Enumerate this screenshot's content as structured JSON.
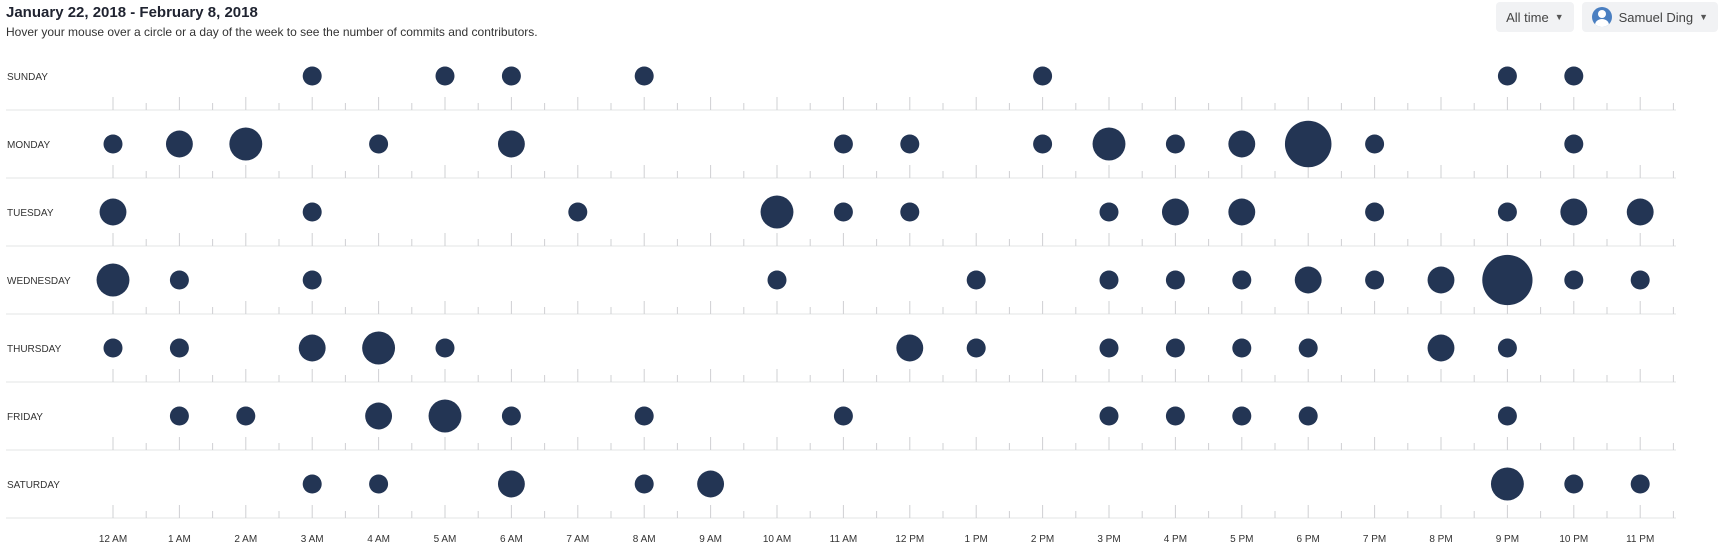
{
  "header": {
    "title": "January 22, 2018 - February 8, 2018",
    "subtitle": "Hover your mouse over a circle or a day of the week to see the number of commits and contributors."
  },
  "controls": {
    "range_label": "All time",
    "user_label": "Samuel Ding"
  },
  "colors": {
    "dot": "#233554",
    "grid": "#e3e4e6",
    "tick": "#cfd0d3"
  },
  "chart_data": {
    "type": "scatter",
    "days": [
      "SUNDAY",
      "MONDAY",
      "TUESDAY",
      "WEDNESDAY",
      "THURSDAY",
      "FRIDAY",
      "SATURDAY"
    ],
    "hours": [
      "12 AM",
      "1 AM",
      "2 AM",
      "3 AM",
      "4 AM",
      "5 AM",
      "6 AM",
      "7 AM",
      "8 AM",
      "9 AM",
      "10 AM",
      "11 AM",
      "12 PM",
      "1 PM",
      "2 PM",
      "3 PM",
      "4 PM",
      "5 PM",
      "6 PM",
      "7 PM",
      "8 PM",
      "9 PM",
      "10 PM",
      "11 PM"
    ],
    "points": [
      {
        "day": "SUNDAY",
        "hour": "3 AM",
        "value": 1
      },
      {
        "day": "SUNDAY",
        "hour": "5 AM",
        "value": 1
      },
      {
        "day": "SUNDAY",
        "hour": "6 AM",
        "value": 1
      },
      {
        "day": "SUNDAY",
        "hour": "8 AM",
        "value": 1
      },
      {
        "day": "SUNDAY",
        "hour": "2 PM",
        "value": 1
      },
      {
        "day": "SUNDAY",
        "hour": "9 PM",
        "value": 1
      },
      {
        "day": "SUNDAY",
        "hour": "10 PM",
        "value": 1
      },
      {
        "day": "MONDAY",
        "hour": "12 AM",
        "value": 1
      },
      {
        "day": "MONDAY",
        "hour": "1 AM",
        "value": 2
      },
      {
        "day": "MONDAY",
        "hour": "2 AM",
        "value": 3
      },
      {
        "day": "MONDAY",
        "hour": "4 AM",
        "value": 1
      },
      {
        "day": "MONDAY",
        "hour": "6 AM",
        "value": 2
      },
      {
        "day": "MONDAY",
        "hour": "11 AM",
        "value": 1
      },
      {
        "day": "MONDAY",
        "hour": "12 PM",
        "value": 1
      },
      {
        "day": "MONDAY",
        "hour": "2 PM",
        "value": 1
      },
      {
        "day": "MONDAY",
        "hour": "3 PM",
        "value": 3
      },
      {
        "day": "MONDAY",
        "hour": "4 PM",
        "value": 1
      },
      {
        "day": "MONDAY",
        "hour": "5 PM",
        "value": 2
      },
      {
        "day": "MONDAY",
        "hour": "6 PM",
        "value": 6
      },
      {
        "day": "MONDAY",
        "hour": "7 PM",
        "value": 1
      },
      {
        "day": "MONDAY",
        "hour": "10 PM",
        "value": 1
      },
      {
        "day": "TUESDAY",
        "hour": "12 AM",
        "value": 2
      },
      {
        "day": "TUESDAY",
        "hour": "3 AM",
        "value": 1
      },
      {
        "day": "TUESDAY",
        "hour": "7 AM",
        "value": 1
      },
      {
        "day": "TUESDAY",
        "hour": "10 AM",
        "value": 3
      },
      {
        "day": "TUESDAY",
        "hour": "11 AM",
        "value": 1
      },
      {
        "day": "TUESDAY",
        "hour": "12 PM",
        "value": 1
      },
      {
        "day": "TUESDAY",
        "hour": "3 PM",
        "value": 1
      },
      {
        "day": "TUESDAY",
        "hour": "4 PM",
        "value": 2
      },
      {
        "day": "TUESDAY",
        "hour": "5 PM",
        "value": 2
      },
      {
        "day": "TUESDAY",
        "hour": "7 PM",
        "value": 1
      },
      {
        "day": "TUESDAY",
        "hour": "9 PM",
        "value": 1
      },
      {
        "day": "TUESDAY",
        "hour": "10 PM",
        "value": 2
      },
      {
        "day": "TUESDAY",
        "hour": "11 PM",
        "value": 2
      },
      {
        "day": "WEDNESDAY",
        "hour": "12 AM",
        "value": 3
      },
      {
        "day": "WEDNESDAY",
        "hour": "1 AM",
        "value": 1
      },
      {
        "day": "WEDNESDAY",
        "hour": "3 AM",
        "value": 1
      },
      {
        "day": "WEDNESDAY",
        "hour": "10 AM",
        "value": 1
      },
      {
        "day": "WEDNESDAY",
        "hour": "1 PM",
        "value": 1
      },
      {
        "day": "WEDNESDAY",
        "hour": "3 PM",
        "value": 1
      },
      {
        "day": "WEDNESDAY",
        "hour": "4 PM",
        "value": 1
      },
      {
        "day": "WEDNESDAY",
        "hour": "5 PM",
        "value": 1
      },
      {
        "day": "WEDNESDAY",
        "hour": "6 PM",
        "value": 2
      },
      {
        "day": "WEDNESDAY",
        "hour": "7 PM",
        "value": 1
      },
      {
        "day": "WEDNESDAY",
        "hour": "8 PM",
        "value": 2
      },
      {
        "day": "WEDNESDAY",
        "hour": "9 PM",
        "value": 7
      },
      {
        "day": "WEDNESDAY",
        "hour": "10 PM",
        "value": 1
      },
      {
        "day": "WEDNESDAY",
        "hour": "11 PM",
        "value": 1
      },
      {
        "day": "THURSDAY",
        "hour": "12 AM",
        "value": 1
      },
      {
        "day": "THURSDAY",
        "hour": "1 AM",
        "value": 1
      },
      {
        "day": "THURSDAY",
        "hour": "3 AM",
        "value": 2
      },
      {
        "day": "THURSDAY",
        "hour": "4 AM",
        "value": 3
      },
      {
        "day": "THURSDAY",
        "hour": "5 AM",
        "value": 1
      },
      {
        "day": "THURSDAY",
        "hour": "12 PM",
        "value": 2
      },
      {
        "day": "THURSDAY",
        "hour": "1 PM",
        "value": 1
      },
      {
        "day": "THURSDAY",
        "hour": "3 PM",
        "value": 1
      },
      {
        "day": "THURSDAY",
        "hour": "4 PM",
        "value": 1
      },
      {
        "day": "THURSDAY",
        "hour": "5 PM",
        "value": 1
      },
      {
        "day": "THURSDAY",
        "hour": "6 PM",
        "value": 1
      },
      {
        "day": "THURSDAY",
        "hour": "8 PM",
        "value": 2
      },
      {
        "day": "THURSDAY",
        "hour": "9 PM",
        "value": 1
      },
      {
        "day": "FRIDAY",
        "hour": "1 AM",
        "value": 1
      },
      {
        "day": "FRIDAY",
        "hour": "2 AM",
        "value": 1
      },
      {
        "day": "FRIDAY",
        "hour": "4 AM",
        "value": 2
      },
      {
        "day": "FRIDAY",
        "hour": "5 AM",
        "value": 3
      },
      {
        "day": "FRIDAY",
        "hour": "6 AM",
        "value": 1
      },
      {
        "day": "FRIDAY",
        "hour": "8 AM",
        "value": 1
      },
      {
        "day": "FRIDAY",
        "hour": "11 AM",
        "value": 1
      },
      {
        "day": "FRIDAY",
        "hour": "3 PM",
        "value": 1
      },
      {
        "day": "FRIDAY",
        "hour": "4 PM",
        "value": 1
      },
      {
        "day": "FRIDAY",
        "hour": "5 PM",
        "value": 1
      },
      {
        "day": "FRIDAY",
        "hour": "6 PM",
        "value": 1
      },
      {
        "day": "FRIDAY",
        "hour": "9 PM",
        "value": 1
      },
      {
        "day": "SATURDAY",
        "hour": "3 AM",
        "value": 1
      },
      {
        "day": "SATURDAY",
        "hour": "4 AM",
        "value": 1
      },
      {
        "day": "SATURDAY",
        "hour": "6 AM",
        "value": 2
      },
      {
        "day": "SATURDAY",
        "hour": "8 AM",
        "value": 1
      },
      {
        "day": "SATURDAY",
        "hour": "9 AM",
        "value": 2
      },
      {
        "day": "SATURDAY",
        "hour": "9 PM",
        "value": 3
      },
      {
        "day": "SATURDAY",
        "hour": "10 PM",
        "value": 1
      },
      {
        "day": "SATURDAY",
        "hour": "11 PM",
        "value": 1
      }
    ]
  }
}
